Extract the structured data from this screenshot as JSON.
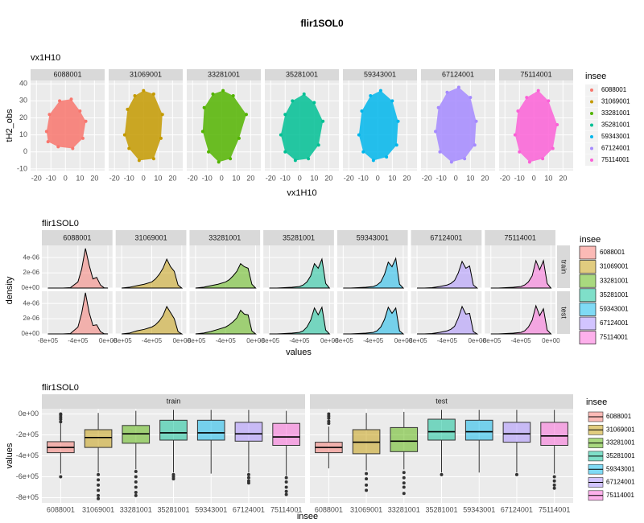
{
  "title": "flir1SOL0",
  "chart_data": [
    {
      "type": "scatter",
      "subtitle": "vx1H10",
      "x_label": "vx1H10",
      "y_label": "tH2_obs",
      "legend_title": "insee",
      "xlim": [
        -24,
        27
      ],
      "ylim": [
        -11,
        42
      ],
      "xticks": [
        -20,
        -10,
        0,
        10,
        20
      ],
      "yticks": [
        -10,
        0,
        10,
        20,
        30,
        40
      ],
      "series": [
        {
          "name": "6088001",
          "color": "#F8766D",
          "x": [
            -13,
            -11,
            -4,
            4,
            10,
            14,
            12,
            5,
            -5,
            -12
          ],
          "values": [
            12,
            22,
            30,
            31,
            24,
            18,
            8,
            2,
            3,
            6
          ]
        },
        {
          "name": "31069001",
          "color": "#C49A00",
          "x": [
            -13,
            -11,
            -6,
            0,
            7,
            13,
            12,
            7,
            -3,
            -10
          ],
          "values": [
            10,
            25,
            33,
            36,
            34,
            22,
            8,
            -4,
            -5,
            2
          ]
        },
        {
          "name": "33281001",
          "color": "#53B400",
          "x": [
            -13,
            -12,
            -6,
            1,
            8,
            17,
            12,
            6,
            -2,
            -9
          ],
          "values": [
            12,
            26,
            34,
            36,
            33,
            22,
            8,
            -4,
            -6,
            0
          ]
        },
        {
          "name": "35281001",
          "color": "#00C094",
          "x": [
            -13,
            -10,
            -5,
            3,
            10,
            16,
            13,
            6,
            -3,
            -10
          ],
          "values": [
            10,
            22,
            30,
            34,
            29,
            18,
            4,
            -4,
            -5,
            0
          ]
        },
        {
          "name": "59343001",
          "color": "#00B6EB",
          "x": [
            -13,
            -11,
            -5,
            2,
            10,
            14,
            13,
            6,
            -3,
            -10
          ],
          "values": [
            10,
            24,
            33,
            36,
            30,
            18,
            4,
            -3,
            -5,
            0
          ]
        },
        {
          "name": "67124001",
          "color": "#A58AFF",
          "x": [
            -14,
            -12,
            -6,
            2,
            10,
            14,
            13,
            6,
            -3,
            -11
          ],
          "values": [
            12,
            26,
            35,
            38,
            32,
            18,
            4,
            -4,
            -6,
            0
          ]
        },
        {
          "name": "75114001",
          "color": "#FB61D7",
          "x": [
            -13,
            -11,
            -5,
            3,
            10,
            16,
            13,
            6,
            -3,
            -10
          ],
          "values": [
            10,
            24,
            32,
            36,
            30,
            16,
            2,
            -4,
            -6,
            0
          ]
        }
      ]
    },
    {
      "type": "density",
      "subtitle": "flir1SOL0",
      "x_label": "values",
      "y_label": "density",
      "legend_title": "insee",
      "facets": [
        "train",
        "test"
      ],
      "x": [
        -800000,
        -700000,
        -600000,
        -500000,
        -400000,
        -350000,
        -300000,
        -250000,
        -200000,
        -150000,
        -100000,
        -50000,
        0
      ],
      "xlim": [
        -880000,
        60000
      ],
      "ylim": [
        0,
        5.6e-06
      ],
      "xticks": [
        {
          "value": -800000,
          "label": "-8e+05"
        },
        {
          "value": -400000,
          "label": "-4e+05"
        },
        {
          "value": 0,
          "label": "0e+00"
        }
      ],
      "yticks": [
        {
          "value": 0,
          "label": "0e+00"
        },
        {
          "value": 2e-06,
          "label": "2e-06"
        },
        {
          "value": 4e-06,
          "label": "4e-06"
        }
      ],
      "series": [
        {
          "name": "6088001",
          "color": "#F8766D",
          "values": [
            [
              0,
              0,
              0,
              5e-08,
              8e-07,
              2.5e-06,
              5.2e-06,
              3e-06,
              1.2e-06,
              1.4e-06,
              4e-07,
              2e-08,
              0
            ],
            [
              0,
              0,
              0,
              5e-08,
              9e-07,
              2.7e-06,
              5.4e-06,
              2.8e-06,
              1.1e-06,
              1.2e-06,
              3e-07,
              2e-08,
              0
            ]
          ]
        },
        {
          "name": "31069001",
          "color": "#C49A00",
          "values": [
            [
              0,
              1e-07,
              3e-07,
              5e-07,
              8e-07,
              1.2e-06,
              1.8e-06,
              2.6e-06,
              3.8e-06,
              2.8e-06,
              2.2e-06,
              4e-07,
              0
            ],
            [
              0,
              1e-07,
              4e-07,
              6e-07,
              9e-07,
              1.2e-06,
              1.7e-06,
              2.4e-06,
              3.6e-06,
              2.8e-06,
              2e-06,
              3e-07,
              0
            ]
          ]
        },
        {
          "name": "33281001",
          "color": "#53B400",
          "values": [
            [
              0,
              1e-07,
              3e-07,
              5e-07,
              8e-07,
              1.1e-06,
              1.6e-06,
              2.2e-06,
              3.2e-06,
              2.8e-06,
              2.6e-06,
              5e-07,
              0
            ],
            [
              0,
              1e-07,
              3e-07,
              6e-07,
              9e-07,
              1.2e-06,
              1.6e-06,
              2.1e-06,
              3.1e-06,
              2.6e-06,
              2.5e-06,
              4e-07,
              0
            ]
          ]
        },
        {
          "name": "35281001",
          "color": "#00C094",
          "values": [
            [
              0,
              0,
              5e-08,
              1e-07,
              2e-07,
              4e-07,
              8e-07,
              1.6e-06,
              3.2e-06,
              2.6e-06,
              3.8e-06,
              6e-07,
              0
            ],
            [
              0,
              0,
              5e-08,
              1e-07,
              2e-07,
              4e-07,
              9e-07,
              1.8e-06,
              3.4e-06,
              2.5e-06,
              3.5e-06,
              5e-07,
              0
            ]
          ]
        },
        {
          "name": "59343001",
          "color": "#00B6EB",
          "values": [
            [
              0,
              0,
              5e-08,
              1e-07,
              2e-07,
              4e-07,
              8e-07,
              1.8e-06,
              3.4e-06,
              2.8e-06,
              3.9e-06,
              5e-07,
              0
            ],
            [
              0,
              0,
              5e-08,
              1e-07,
              2e-07,
              4e-07,
              9e-07,
              1.9e-06,
              3.5e-06,
              2.7e-06,
              3.4e-06,
              4e-07,
              0
            ]
          ]
        },
        {
          "name": "67124001",
          "color": "#A58AFF",
          "values": [
            [
              0,
              0,
              5e-08,
              2e-07,
              4e-07,
              6e-07,
              1e-06,
              2e-06,
              3.5e-06,
              2.6e-06,
              2.9e-06,
              4e-07,
              0
            ],
            [
              0,
              0,
              5e-08,
              2e-07,
              4e-07,
              6e-07,
              1e-06,
              2.1e-06,
              3.6e-06,
              2.6e-06,
              2.7e-06,
              3e-07,
              0
            ]
          ]
        },
        {
          "name": "75114001",
          "color": "#FB61D7",
          "values": [
            [
              0,
              0,
              5e-08,
              1e-07,
              2e-07,
              4e-07,
              8e-07,
              1.6e-06,
              3.6e-06,
              2.4e-06,
              3.6e-06,
              6e-07,
              0
            ],
            [
              0,
              0,
              5e-08,
              1e-07,
              2e-07,
              4e-07,
              9e-07,
              1.8e-06,
              3.7e-06,
              2.4e-06,
              3.3e-06,
              5e-07,
              0
            ]
          ]
        }
      ]
    },
    {
      "type": "box",
      "subtitle": "flir1SOL0",
      "x_label": "insee",
      "y_label": "values",
      "legend_title": "insee",
      "facets": [
        "train",
        "test"
      ],
      "ylim": [
        -850000,
        50000
      ],
      "yticks": [
        {
          "value": 0,
          "label": "0e+00"
        },
        {
          "value": -200000,
          "label": "-2e+05"
        },
        {
          "value": -400000,
          "label": "-4e+05"
        },
        {
          "value": -600000,
          "label": "-6e+05"
        },
        {
          "value": -800000,
          "label": "-8e+05"
        }
      ],
      "series": [
        {
          "name": "6088001",
          "color": "#F8766D",
          "boxes": [
            {
              "low": -570000,
              "q1": -370000,
              "median": -320000,
              "q3": -265000,
              "high": -90000,
              "outliers": [
                -600000,
                -75000,
                -50000,
                -30000,
                -10000,
                0
              ]
            },
            {
              "low": -520000,
              "q1": -370000,
              "median": -320000,
              "q3": -270000,
              "high": -120000,
              "outliers": [
                -90000,
                -70000,
                -40000,
                -20000,
                0
              ]
            }
          ]
        },
        {
          "name": "31069001",
          "color": "#C49A00",
          "boxes": [
            {
              "low": -560000,
              "q1": -320000,
              "median": -225000,
              "q3": -150000,
              "high": 10000,
              "outliers": [
                -580000,
                -630000,
                -680000,
                -730000,
                -780000,
                -810000
              ]
            },
            {
              "low": -540000,
              "q1": -380000,
              "median": -270000,
              "q3": -150000,
              "high": 10000,
              "outliers": [
                -570000,
                -620000,
                -680000,
                -730000
              ]
            }
          ]
        },
        {
          "name": "33281001",
          "color": "#53B400",
          "boxes": [
            {
              "low": -530000,
              "q1": -280000,
              "median": -190000,
              "q3": -110000,
              "high": 30000,
              "outliers": [
                -550000,
                -600000,
                -650000,
                -700000,
                -750000,
                -780000
              ]
            },
            {
              "low": -530000,
              "q1": -360000,
              "median": -260000,
              "q3": -130000,
              "high": 20000,
              "outliers": [
                -560000,
                -610000,
                -660000,
                -700000,
                -760000
              ]
            }
          ]
        },
        {
          "name": "35281001",
          "color": "#00C094",
          "boxes": [
            {
              "low": -560000,
              "q1": -250000,
              "median": -180000,
              "q3": -60000,
              "high": 40000,
              "outliers": [
                -580000,
                -600000,
                -620000
              ]
            },
            {
              "low": -560000,
              "q1": -250000,
              "median": -170000,
              "q3": -50000,
              "high": 40000,
              "outliers": [
                -580000
              ]
            }
          ]
        },
        {
          "name": "59343001",
          "color": "#00B6EB",
          "boxes": [
            {
              "low": -570000,
              "q1": -250000,
              "median": -180000,
              "q3": -60000,
              "high": 40000,
              "outliers": []
            },
            {
              "low": -560000,
              "q1": -250000,
              "median": -170000,
              "q3": -60000,
              "high": 40000,
              "outliers": []
            }
          ]
        },
        {
          "name": "67124001",
          "color": "#A58AFF",
          "boxes": [
            {
              "low": -560000,
              "q1": -260000,
              "median": -190000,
              "q3": -80000,
              "high": 40000,
              "outliers": [
                -580000,
                -610000,
                -640000,
                -660000
              ]
            },
            {
              "low": -560000,
              "q1": -270000,
              "median": -190000,
              "q3": -80000,
              "high": 40000,
              "outliers": [
                -580000
              ]
            }
          ]
        },
        {
          "name": "75114001",
          "color": "#FB61D7",
          "boxes": [
            {
              "low": -590000,
              "q1": -300000,
              "median": -220000,
              "q3": -90000,
              "high": 30000,
              "outliers": [
                -610000,
                -650000,
                -700000,
                -740000,
                -770000
              ]
            },
            {
              "low": -570000,
              "q1": -300000,
              "median": -210000,
              "q3": -80000,
              "high": 40000,
              "outliers": [
                -600000,
                -640000,
                -680000,
                -710000
              ]
            }
          ]
        }
      ]
    }
  ]
}
